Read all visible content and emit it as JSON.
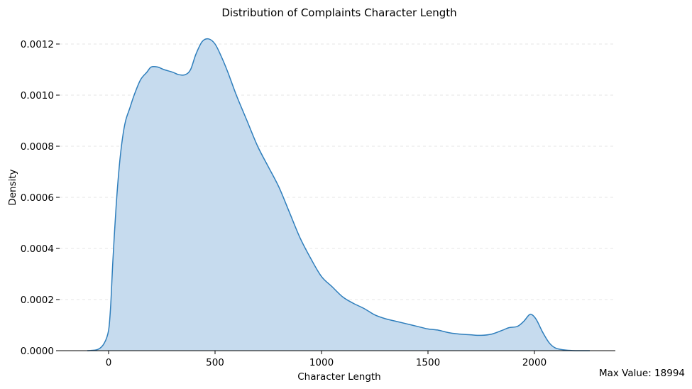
{
  "chart_data": {
    "type": "area",
    "title": "Distribution of Complaints Character Length",
    "xlabel": "Character Length",
    "ylabel": "Density",
    "xlim": [
      -230,
      2380
    ],
    "ylim": [
      0,
      0.00125
    ],
    "x_ticks": [
      {
        "value": 0,
        "label": "0"
      },
      {
        "value": 500,
        "label": "500"
      },
      {
        "value": 1000,
        "label": "1000"
      },
      {
        "value": 1500,
        "label": "1500"
      },
      {
        "value": 2000,
        "label": "2000"
      }
    ],
    "y_ticks": [
      {
        "value": 0,
        "label": "0.0000"
      },
      {
        "value": 0.0002,
        "label": "0.0002"
      },
      {
        "value": 0.0004,
        "label": "0.0004"
      },
      {
        "value": 0.0006,
        "label": "0.0006"
      },
      {
        "value": 0.0008,
        "label": "0.0008"
      },
      {
        "value": 0.001,
        "label": "0.0010"
      },
      {
        "value": 0.0012,
        "label": "0.0012"
      }
    ],
    "grid": "horizontal dashed",
    "series": [
      {
        "color": "#2e7ebc",
        "fill": "#c6dbee",
        "points": [
          [
            -100,
            0.0
          ],
          [
            -50,
            5e-06
          ],
          [
            -20,
            3e-05
          ],
          [
            0,
            8e-05
          ],
          [
            10,
            0.00018
          ],
          [
            20,
            0.00035
          ],
          [
            35,
            0.00056
          ],
          [
            50,
            0.00072
          ],
          [
            65,
            0.00083
          ],
          [
            80,
            0.0009
          ],
          [
            100,
            0.00095
          ],
          [
            120,
            0.001
          ],
          [
            150,
            0.00106
          ],
          [
            180,
            0.00109
          ],
          [
            200,
            0.00111
          ],
          [
            230,
            0.00111
          ],
          [
            260,
            0.0011
          ],
          [
            300,
            0.00109
          ],
          [
            330,
            0.00108
          ],
          [
            360,
            0.00108
          ],
          [
            385,
            0.0011
          ],
          [
            410,
            0.00116
          ],
          [
            440,
            0.00121
          ],
          [
            470,
            0.00122
          ],
          [
            500,
            0.0012
          ],
          [
            530,
            0.00115
          ],
          [
            560,
            0.00109
          ],
          [
            600,
            0.001
          ],
          [
            650,
            0.0009
          ],
          [
            700,
            0.0008
          ],
          [
            750,
            0.00072
          ],
          [
            800,
            0.00064
          ],
          [
            850,
            0.00054
          ],
          [
            900,
            0.00044
          ],
          [
            950,
            0.00036
          ],
          [
            1000,
            0.00029
          ],
          [
            1050,
            0.00025
          ],
          [
            1100,
            0.00021
          ],
          [
            1150,
            0.000185
          ],
          [
            1200,
            0.000165
          ],
          [
            1250,
            0.00014
          ],
          [
            1300,
            0.000125
          ],
          [
            1350,
            0.000115
          ],
          [
            1400,
            0.000105
          ],
          [
            1450,
            9.5e-05
          ],
          [
            1500,
            8.5e-05
          ],
          [
            1550,
            8e-05
          ],
          [
            1600,
            7e-05
          ],
          [
            1650,
            6.5e-05
          ],
          [
            1700,
            6.2e-05
          ],
          [
            1750,
            6e-05
          ],
          [
            1800,
            6.5e-05
          ],
          [
            1850,
            8e-05
          ],
          [
            1880,
            9e-05
          ],
          [
            1920,
            9.5e-05
          ],
          [
            1950,
            0.000115
          ],
          [
            1975,
            0.00014
          ],
          [
            1990,
            0.00014
          ],
          [
            2010,
            0.00012
          ],
          [
            2040,
            7e-05
          ],
          [
            2070,
            3e-05
          ],
          [
            2100,
            1e-05
          ],
          [
            2150,
            2e-06
          ],
          [
            2200,
            0.0
          ],
          [
            2260,
            0.0
          ]
        ]
      }
    ],
    "annotation": "Max Value: 18994"
  }
}
